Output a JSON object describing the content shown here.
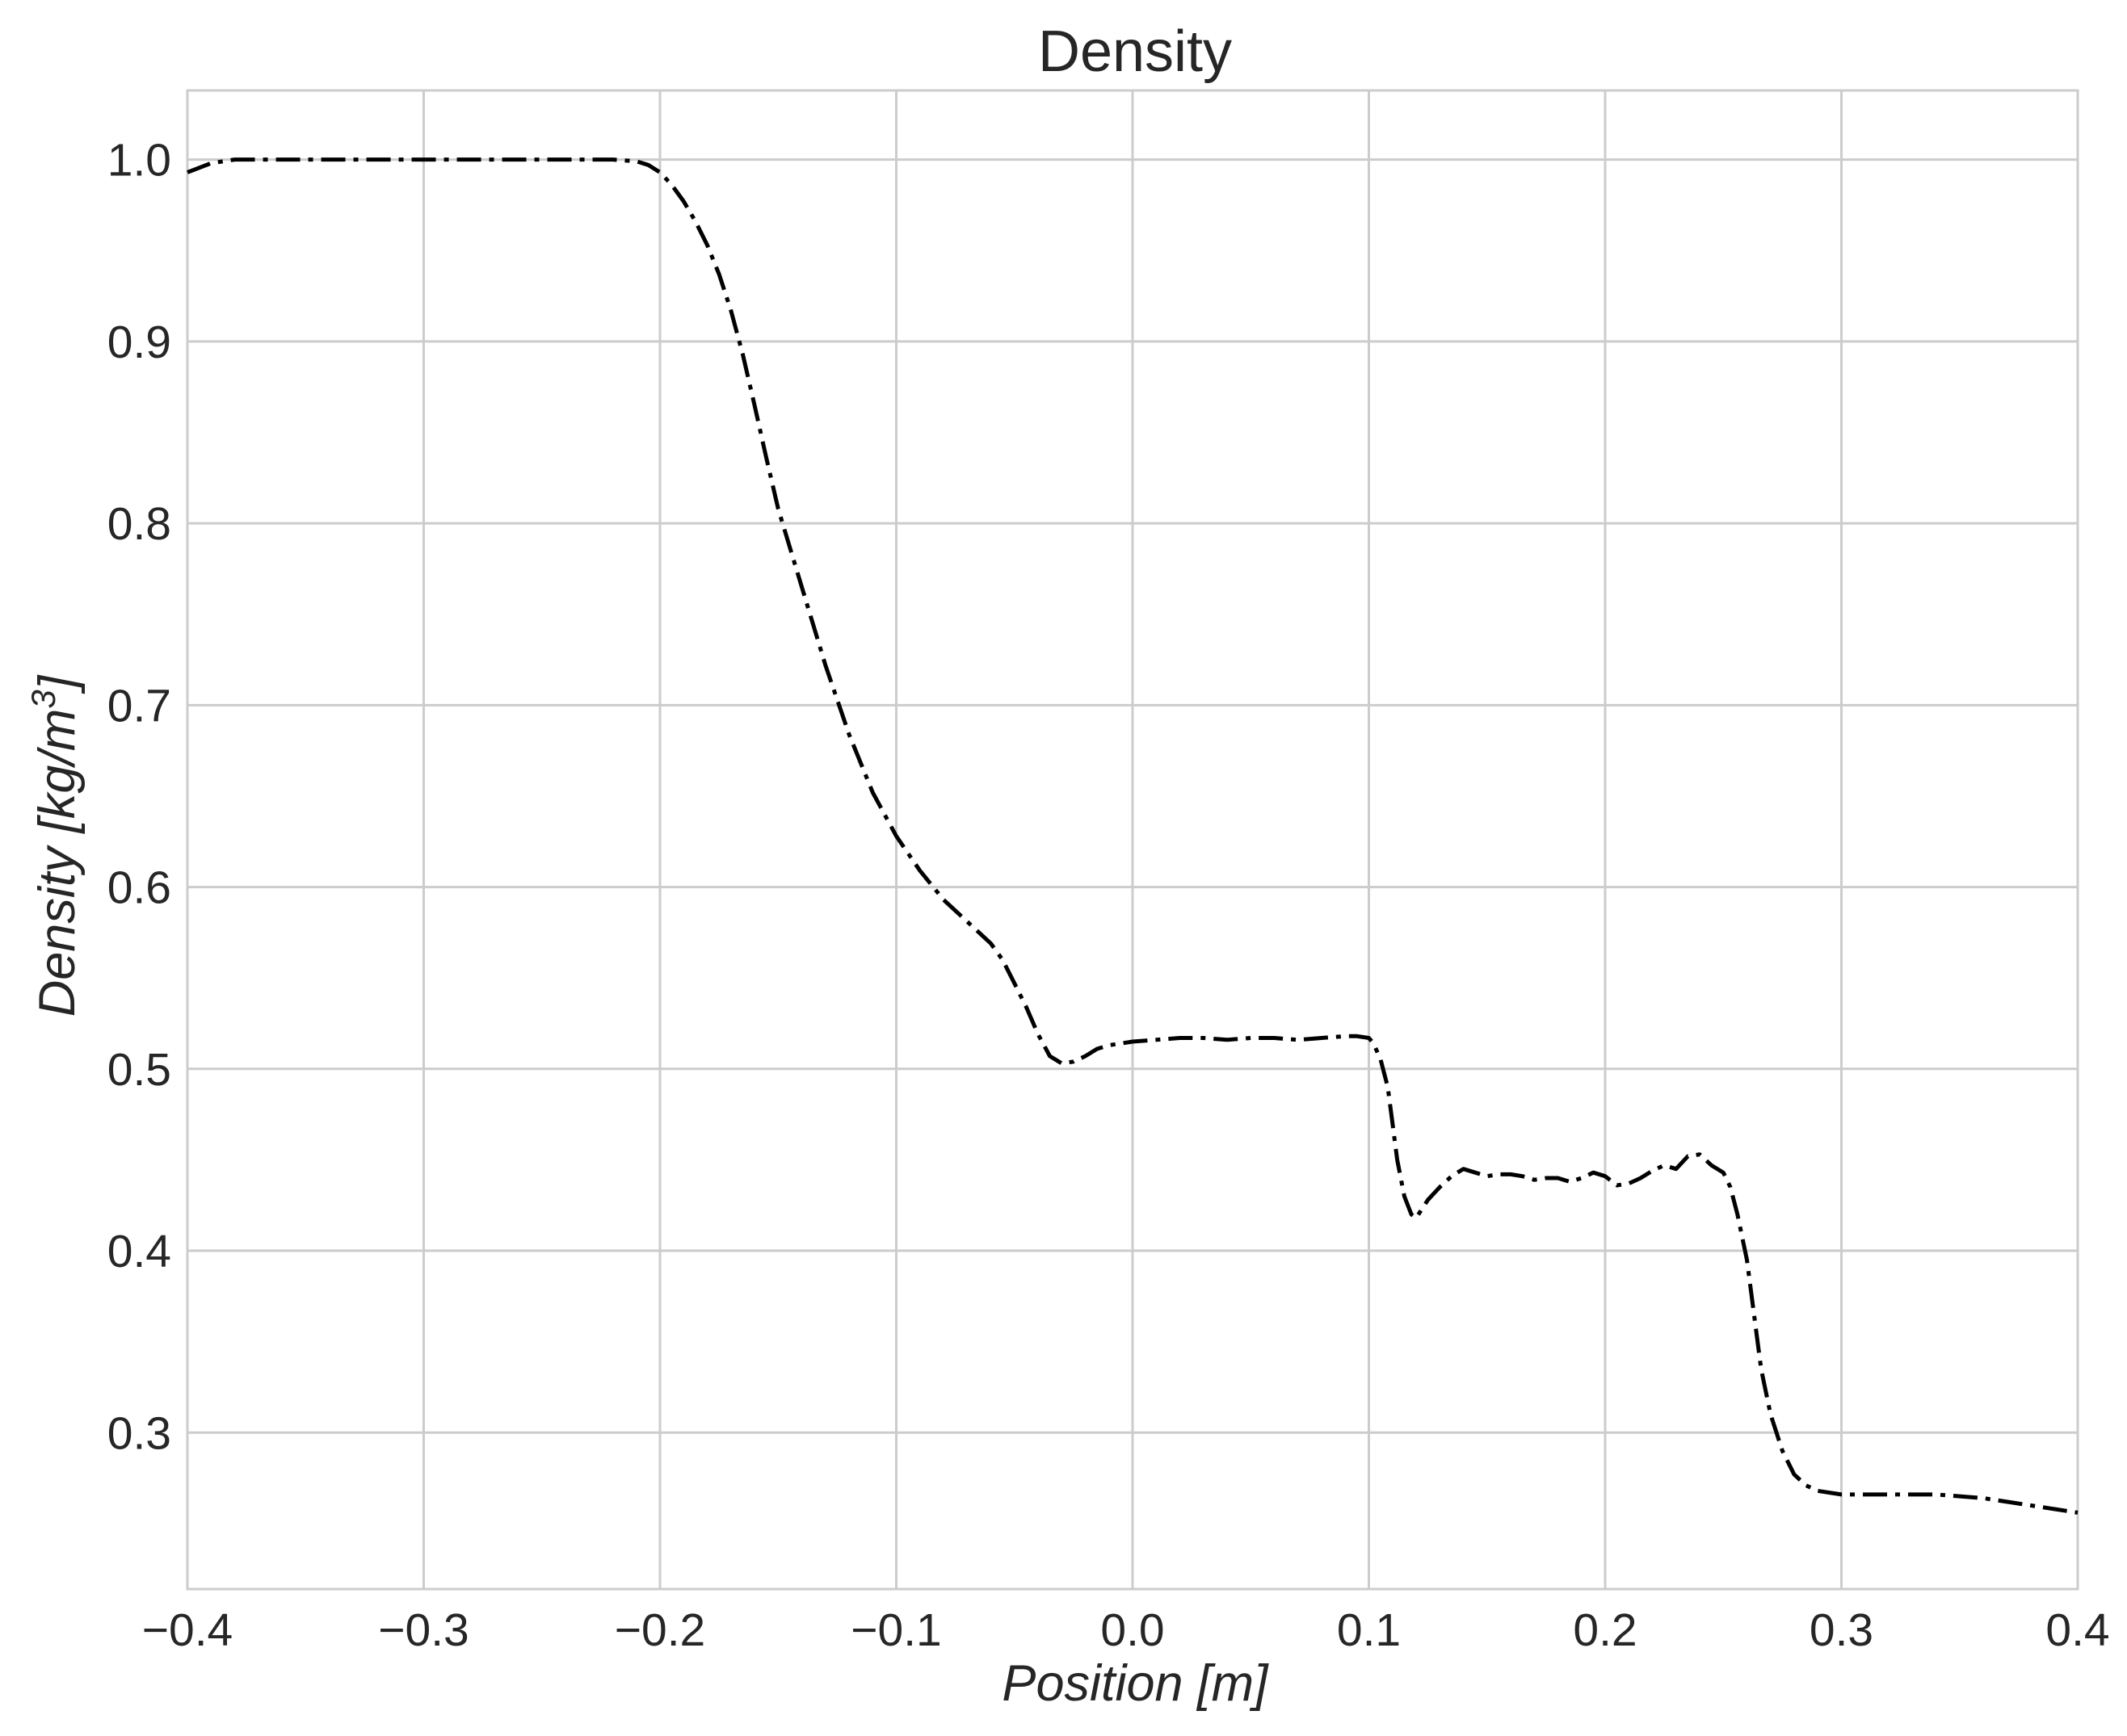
{
  "chart_data": {
    "type": "line",
    "title": "Density",
    "xlabel": "Position [m]",
    "xlabel_parts": {
      "main": "Position [",
      "unit": "m",
      "close": "]"
    },
    "ylabel": "Density [kg/m3]",
    "ylabel_parts": {
      "main": "Density [",
      "unit": "kg/m",
      "sup": "3",
      "close": "]"
    },
    "xlim": [
      -0.4,
      0.4
    ],
    "ylim": [
      0.214,
      1.038
    ],
    "x_ticks": [
      -0.4,
      -0.3,
      -0.2,
      -0.1,
      0.0,
      0.1,
      0.2,
      0.3,
      0.4
    ],
    "x_tick_labels": [
      "−0.4",
      "−0.3",
      "−0.2",
      "−0.1",
      "0.0",
      "0.1",
      "0.2",
      "0.3",
      "0.4"
    ],
    "y_ticks": [
      0.3,
      0.4,
      0.5,
      0.6,
      0.7,
      0.8,
      0.9,
      1.0
    ],
    "y_tick_labels": [
      "0.3",
      "0.4",
      "0.5",
      "0.6",
      "0.7",
      "0.8",
      "0.9",
      "1.0"
    ],
    "grid": true,
    "line_style": "dash-dot",
    "line_color": "#000000",
    "series": [
      {
        "x": [
          -0.4,
          -0.39,
          -0.38,
          -0.36,
          -0.3,
          -0.25,
          -0.22,
          -0.21,
          -0.205,
          -0.2,
          -0.195,
          -0.19,
          -0.185,
          -0.18,
          -0.175,
          -0.17,
          -0.165,
          -0.16,
          -0.155,
          -0.15,
          -0.14,
          -0.13,
          -0.12,
          -0.11,
          -0.1,
          -0.09,
          -0.08,
          -0.07,
          -0.06,
          -0.055,
          -0.05,
          -0.045,
          -0.04,
          -0.035,
          -0.03,
          -0.025,
          -0.02,
          -0.015,
          -0.01,
          -0.005,
          0.0,
          0.01,
          0.02,
          0.03,
          0.04,
          0.05,
          0.06,
          0.07,
          0.08,
          0.09,
          0.095,
          0.1,
          0.102,
          0.105,
          0.108,
          0.11,
          0.112,
          0.115,
          0.118,
          0.12,
          0.122,
          0.125,
          0.13,
          0.135,
          0.14,
          0.145,
          0.15,
          0.155,
          0.16,
          0.165,
          0.17,
          0.175,
          0.18,
          0.185,
          0.19,
          0.195,
          0.2,
          0.205,
          0.21,
          0.215,
          0.22,
          0.225,
          0.23,
          0.235,
          0.24,
          0.245,
          0.25,
          0.253,
          0.256,
          0.26,
          0.263,
          0.266,
          0.27,
          0.275,
          0.28,
          0.285,
          0.29,
          0.3,
          0.31,
          0.32,
          0.33,
          0.34,
          0.35,
          0.36,
          0.37,
          0.38,
          0.39,
          0.4
        ],
        "y": [
          0.993,
          0.998,
          1.0,
          1.0,
          1.0,
          1.0,
          1.0,
          0.999,
          0.997,
          0.993,
          0.986,
          0.977,
          0.966,
          0.953,
          0.937,
          0.917,
          0.893,
          0.865,
          0.836,
          0.808,
          0.765,
          0.722,
          0.684,
          0.652,
          0.628,
          0.609,
          0.593,
          0.581,
          0.569,
          0.56,
          0.547,
          0.534,
          0.519,
          0.507,
          0.503,
          0.504,
          0.507,
          0.511,
          0.513,
          0.514,
          0.515,
          0.516,
          0.517,
          0.517,
          0.516,
          0.517,
          0.517,
          0.516,
          0.517,
          0.518,
          0.518,
          0.517,
          0.514,
          0.505,
          0.49,
          0.47,
          0.45,
          0.43,
          0.42,
          0.418,
          0.422,
          0.428,
          0.435,
          0.441,
          0.445,
          0.443,
          0.441,
          0.442,
          0.442,
          0.441,
          0.439,
          0.44,
          0.44,
          0.438,
          0.44,
          0.443,
          0.441,
          0.436,
          0.437,
          0.44,
          0.444,
          0.447,
          0.445,
          0.452,
          0.453,
          0.447,
          0.443,
          0.435,
          0.42,
          0.395,
          0.365,
          0.335,
          0.31,
          0.29,
          0.277,
          0.271,
          0.268,
          0.266,
          0.266,
          0.266,
          0.266,
          0.266,
          0.265,
          0.264,
          0.262,
          0.26,
          0.258,
          0.256
        ]
      }
    ]
  }
}
